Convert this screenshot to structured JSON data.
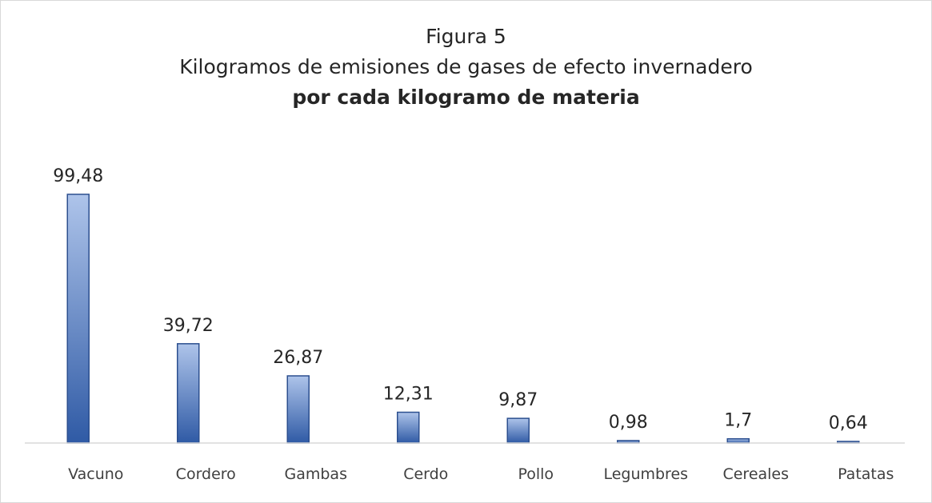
{
  "chart_data": {
    "type": "bar",
    "title": "Figura 5",
    "subtitle_line1": "Kilogramos de emisiones de gases de efecto invernadero",
    "subtitle_line2": "por cada kilogramo de materia",
    "categories": [
      "Vacuno",
      "Cordero",
      "Gambas",
      "Cerdo",
      "Pollo",
      "Legumbres",
      "Cereales",
      "Patatas"
    ],
    "values": [
      99.48,
      39.72,
      26.87,
      12.31,
      9.87,
      0.98,
      1.7,
      0.64
    ],
    "value_labels": [
      "99,48",
      "39,72",
      "26,87",
      "12,31",
      "9,87",
      "0,98",
      "1,7",
      "0,64"
    ],
    "ylim": [
      0,
      100
    ],
    "grid": false,
    "legend": "none",
    "colors": {
      "bar_top": "#aec4ea",
      "bar_bottom": "#2f5aa5",
      "bar_stroke": "#2c4f8f",
      "axis": "#d9d9d9"
    }
  }
}
